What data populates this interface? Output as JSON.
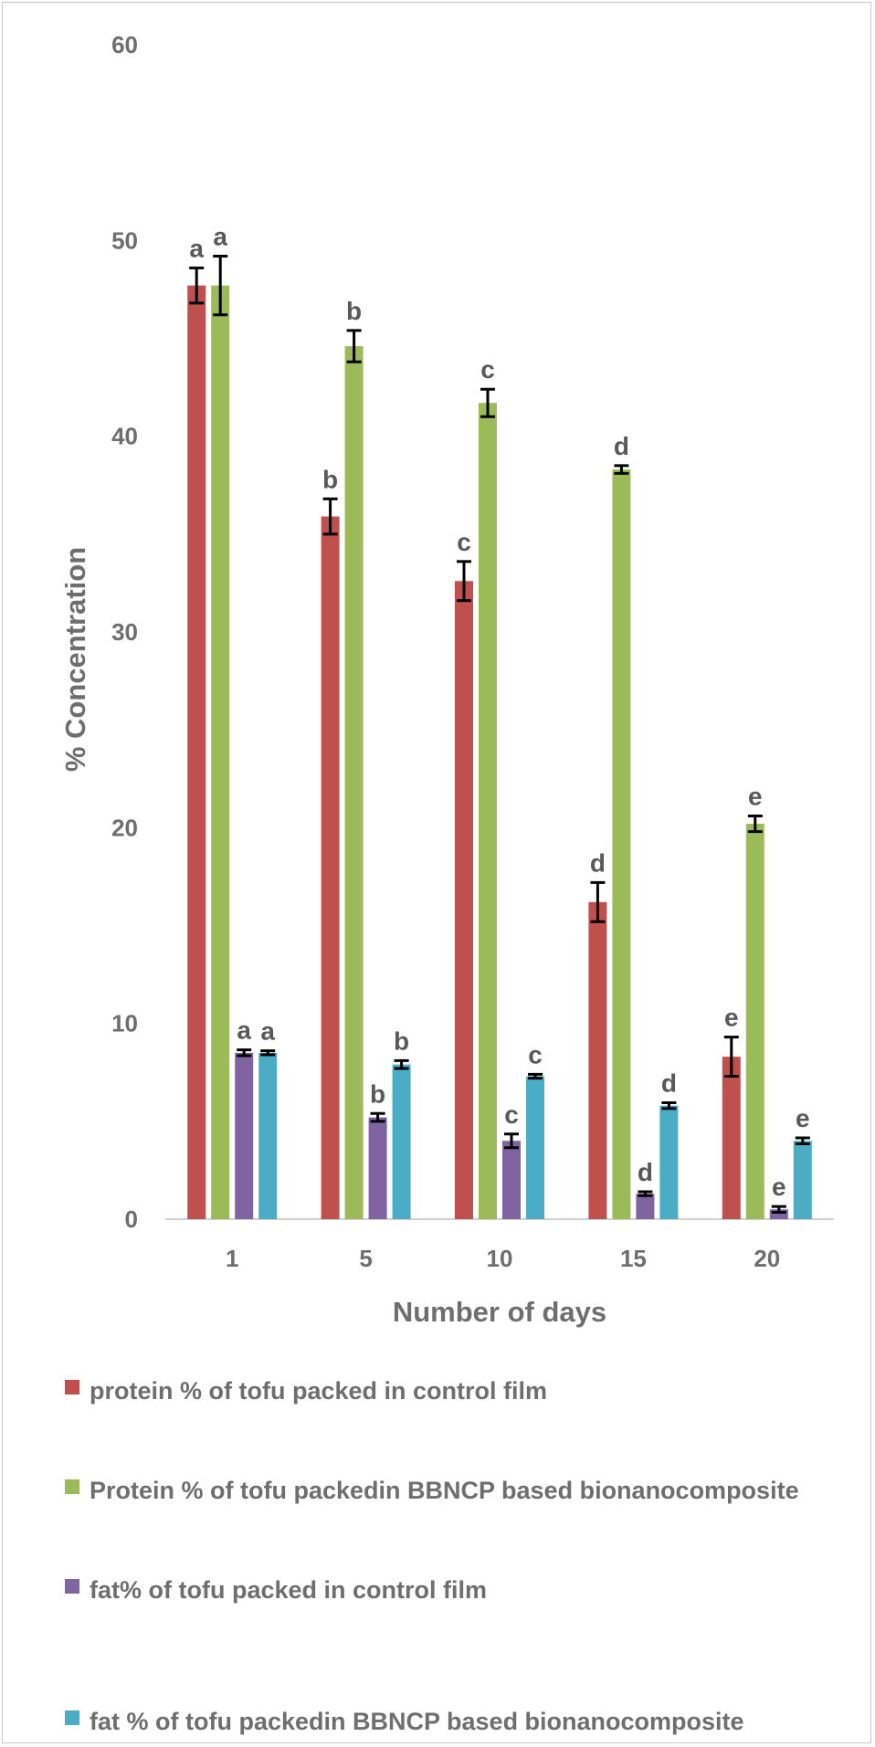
{
  "chart_data": {
    "type": "bar",
    "categories": [
      "1",
      "5",
      "10",
      "15",
      "20"
    ],
    "xlabel": "Number of days",
    "ylabel": "% Concentration",
    "ylim": [
      0,
      60
    ],
    "yticks": [
      "0",
      "10",
      "20",
      "30",
      "40",
      "50",
      "60"
    ],
    "grid": false,
    "legend_position": "bottom",
    "series": [
      {
        "name": "protein % of tofu packed in control film",
        "color": "#c0504d",
        "values": [
          47.7,
          35.9,
          32.6,
          16.2,
          8.3
        ],
        "errors": [
          0.9,
          0.9,
          1.0,
          1.0,
          1.0
        ],
        "letters": [
          "a",
          "b",
          "c",
          "d",
          "e"
        ]
      },
      {
        "name": "Protein % of tofu packedin BBNCP based bionanocomposite",
        "color": "#9bbb59",
        "values": [
          47.7,
          44.6,
          41.7,
          38.3,
          20.2
        ],
        "errors": [
          1.5,
          0.8,
          0.7,
          0.2,
          0.4
        ],
        "letters": [
          "a",
          "b",
          "c",
          "d",
          "e"
        ]
      },
      {
        "name": "fat% of tofu packed in control film",
        "color": "#8064a2",
        "values": [
          8.5,
          5.2,
          4.0,
          1.3,
          0.5
        ],
        "errors": [
          0.15,
          0.2,
          0.35,
          0.1,
          0.15
        ],
        "letters": [
          "a",
          "b",
          "c",
          "d",
          "e"
        ]
      },
      {
        "name": "fat % of tofu packedin BBNCP based bionanocomposite",
        "color": "#4bacc6",
        "values": [
          8.5,
          7.9,
          7.3,
          5.8,
          4.0
        ],
        "errors": [
          0.1,
          0.2,
          0.1,
          0.15,
          0.15
        ],
        "letters": [
          "a",
          "b",
          "c",
          "d",
          "e"
        ]
      }
    ]
  }
}
